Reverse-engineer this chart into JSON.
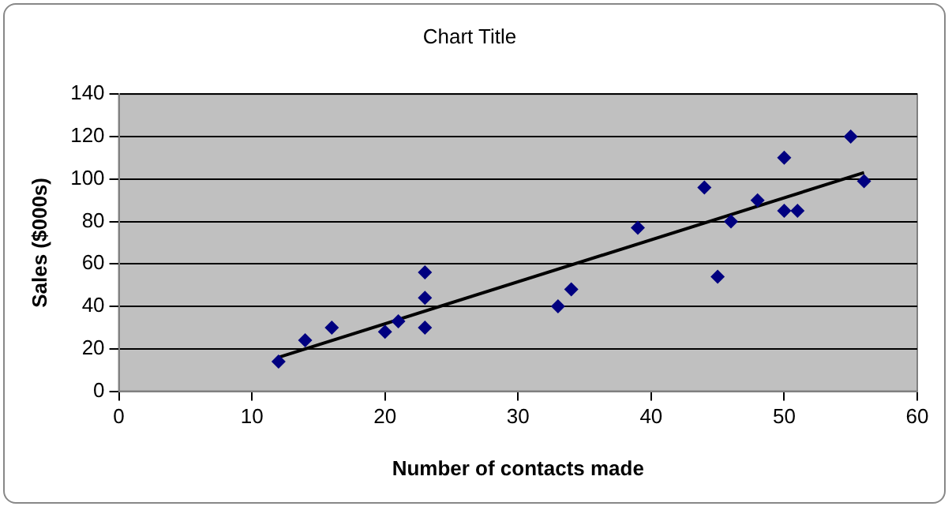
{
  "chart_data": {
    "type": "scatter",
    "title": "Chart Title",
    "xlabel": "Number of contacts made",
    "ylabel": "Sales ($000s)",
    "xlim": [
      0,
      60
    ],
    "xticks": [
      0,
      10,
      20,
      30,
      40,
      50,
      60
    ],
    "ylim": [
      0,
      140
    ],
    "yticks": [
      0,
      20,
      40,
      60,
      80,
      100,
      120,
      140
    ],
    "grid": "y",
    "legend": false,
    "marker": "diamond",
    "series": [
      {
        "color": "#000080",
        "x": [
          12,
          14,
          16,
          20,
          21,
          23,
          23,
          23,
          33,
          34,
          39,
          44,
          45,
          46,
          48,
          50,
          50,
          51,
          55,
          56
        ],
        "values": [
          14,
          24,
          30,
          28,
          33,
          56,
          44,
          30,
          40,
          48,
          77,
          96,
          54,
          80,
          90,
          110,
          85,
          85,
          120,
          99
        ]
      },
      {
        "type": "line",
        "color": "#000000",
        "x": [
          12,
          56
        ],
        "values": [
          16,
          103
        ],
        "marker": "none"
      }
    ]
  }
}
